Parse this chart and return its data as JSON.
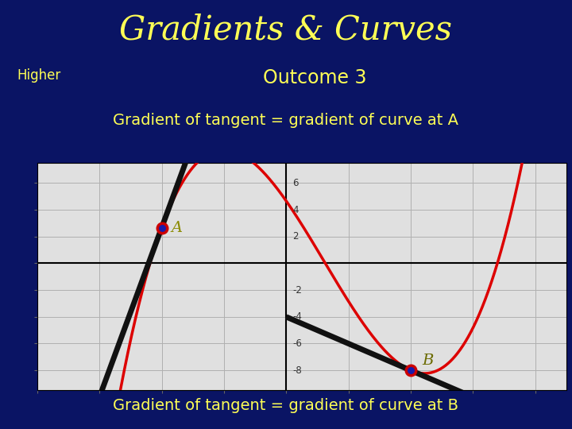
{
  "title": "Gradients & Curves",
  "subtitle": "Outcome 3",
  "higher_text": "Higher",
  "text_A": "Gradient of tangent = gradient of curve at A",
  "text_B": "Gradient of tangent = gradient of curve at B",
  "label_A": "A",
  "label_B": "B",
  "bg_color": "#0a1464",
  "title_color": "#ffff55",
  "subtitle_color": "#ffff55",
  "higher_color": "#ffff55",
  "annotation_color_A": "#8a8a00",
  "annotation_color_B": "#6b6b00",
  "curve_color": "#dd0000",
  "tangent_color": "#111111",
  "point_fill": "#1a1aaa",
  "point_edge": "#cc0000",
  "grid_bg": "#e0e0e0",
  "grid_color": "#b0b0b0",
  "axis_color": "#000000",
  "xlim": [
    -4.0,
    4.5
  ],
  "ylim": [
    -9.5,
    7.5
  ],
  "xA": -2.5,
  "xB": 2.0,
  "func_a": 1.0,
  "func_b": -1.5,
  "func_c": -6.0,
  "func_d": 2.0,
  "title_fontsize": 30,
  "subtitle_fontsize": 17,
  "higher_fontsize": 12,
  "annot_fontsize": 14,
  "label_fontsize": 14
}
